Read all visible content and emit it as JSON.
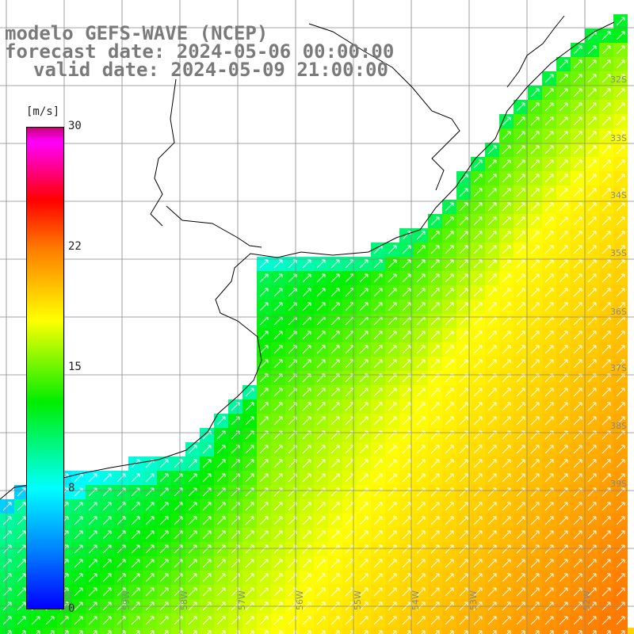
{
  "title": {
    "line1": "modelo GEFS-WAVE (NCEP)",
    "line2": "forecast date: 2024-05-06 00:00:00",
    "line3": "valid date: 2024-05-09 21:00:00"
  },
  "colorbar": {
    "unit": "[m/s]",
    "ticks": [
      "30",
      "22",
      "15",
      "8",
      "0"
    ]
  },
  "lat_labels": [
    "32S",
    "33S",
    "34S",
    "35S",
    "36S",
    "37S",
    "38S",
    "39S"
  ],
  "lon_labels": [
    "60W",
    "59W",
    "58W",
    "57W",
    "56W",
    "55W",
    "54W",
    "53W",
    "52W"
  ],
  "colors": {
    "low": "#0000ff",
    "mid_low": "#00ffff",
    "mid": "#00ee00",
    "high": "#ffff00",
    "max": "#ff7a00",
    "arrow": "#ffffff",
    "title": "#7a7a7a"
  }
}
